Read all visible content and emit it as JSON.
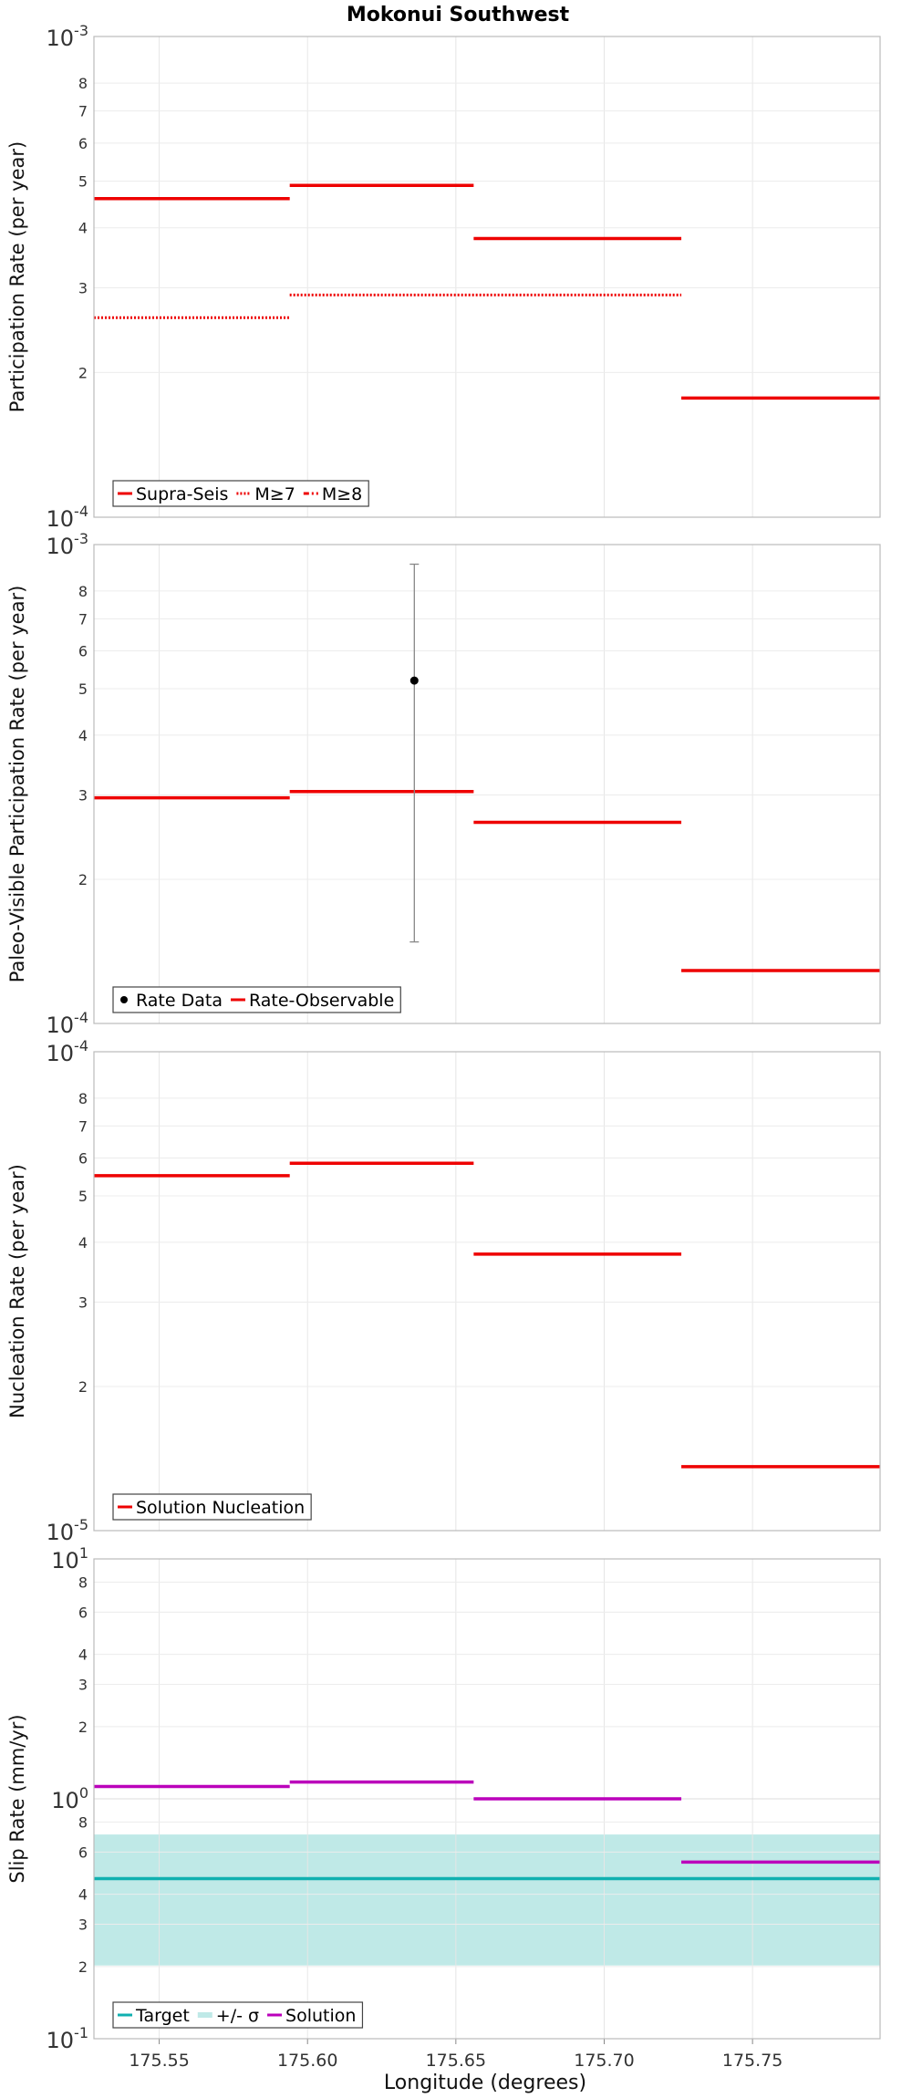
{
  "chart_data": {
    "type": "line",
    "title": "Mokonui Southwest",
    "xlabel": "Longitude (degrees)",
    "xlim": [
      175.528,
      175.793
    ],
    "x_ticks": [
      "175.55",
      "175.60",
      "175.65",
      "175.70",
      "175.75"
    ],
    "x_tick_values": [
      175.55,
      175.6,
      175.65,
      175.7,
      175.75
    ],
    "panels": [
      {
        "ylabel": "Participation Rate (per year)",
        "scale": "log",
        "ylim": [
          0.0001,
          0.001
        ],
        "major_ticks": {
          "base": "10",
          "exp_low": "-4",
          "exp_high": "-3"
        },
        "minor_ticks": [
          "2",
          "3",
          "4",
          "5",
          "6",
          "7",
          "8"
        ],
        "minor_tick_values": [
          0.0002,
          0.0003,
          0.0004,
          0.0005,
          0.0006,
          0.0007,
          0.0008
        ],
        "series": [
          {
            "name": "Supra-Seis",
            "color": "#ee0000",
            "style": "solid",
            "segments": [
              [
                175.528,
                175.594,
                0.00046
              ],
              [
                175.594,
                175.656,
                0.00049
              ],
              [
                175.656,
                175.726,
                0.00038
              ],
              [
                175.726,
                175.793,
                0.000177
              ]
            ]
          },
          {
            "name": "M≥7",
            "color": "#ee0000",
            "style": "dotted",
            "segments": [
              [
                175.528,
                175.594,
                0.00026
              ],
              [
                175.594,
                175.726,
                0.00029
              ]
            ]
          },
          {
            "name": "M≥8",
            "color": "#ee0000",
            "style": "dashdot",
            "segments": []
          }
        ],
        "legend": [
          "Supra-Seis",
          "M≥7",
          "M≥8"
        ]
      },
      {
        "ylabel": "Paleo-Visible Participation Rate (per year)",
        "scale": "log",
        "ylim": [
          0.0001,
          0.001
        ],
        "major_ticks": {
          "base": "10",
          "exp_low": "-4",
          "exp_high": "-3"
        },
        "minor_ticks": [
          "2",
          "3",
          "4",
          "5",
          "6",
          "7",
          "8"
        ],
        "minor_tick_values": [
          0.0002,
          0.0003,
          0.0004,
          0.0005,
          0.0006,
          0.0007,
          0.0008
        ],
        "series": [
          {
            "name": "Rate-Observable",
            "color": "#ee0000",
            "style": "solid",
            "segments": [
              [
                175.528,
                175.594,
                0.000296
              ],
              [
                175.594,
                175.656,
                0.000305
              ],
              [
                175.656,
                175.726,
                0.000263
              ],
              [
                175.726,
                175.793,
                0.000129
              ]
            ]
          }
        ],
        "points": [
          {
            "name": "Rate Data",
            "x": 175.636,
            "y": 0.00052,
            "err_low": 0.000148,
            "err_high": 0.00091
          }
        ],
        "legend": [
          "Rate Data",
          "Rate-Observable"
        ]
      },
      {
        "ylabel": "Nucleation Rate (per year)",
        "scale": "log",
        "ylim": [
          1e-05,
          0.0001
        ],
        "major_ticks": {
          "base": "10",
          "exp_low": "-5",
          "exp_high": "-4"
        },
        "minor_ticks": [
          "2",
          "3",
          "4",
          "5",
          "6",
          "7",
          "8"
        ],
        "minor_tick_values": [
          2e-05,
          3e-05,
          4e-05,
          5e-05,
          6e-05,
          7e-05,
          8e-05
        ],
        "series": [
          {
            "name": "Solution Nucleation",
            "color": "#ee0000",
            "style": "solid",
            "segments": [
              [
                175.528,
                175.594,
                5.51e-05
              ],
              [
                175.594,
                175.656,
                5.85e-05
              ],
              [
                175.656,
                175.726,
                3.78e-05
              ],
              [
                175.726,
                175.793,
                1.36e-05
              ]
            ]
          }
        ],
        "legend": [
          "Solution Nucleation"
        ]
      },
      {
        "ylabel": "Slip Rate (mm/yr)",
        "scale": "log",
        "ylim": [
          0.1,
          10
        ],
        "major_ticks": {
          "base": "10",
          "exp_low": "-1",
          "exp_mid": "0",
          "exp_high": "1"
        },
        "minor_ticks": [
          "2",
          "3",
          "4",
          "6",
          "8",
          "2",
          "3",
          "4",
          "6",
          "8"
        ],
        "minor_tick_values": [
          0.2,
          0.3,
          0.4,
          0.6,
          0.8,
          2,
          3,
          4,
          6,
          8
        ],
        "band": {
          "name": "+/- σ",
          "color": "#bfe9e7",
          "low": 0.202,
          "high": 0.71
        },
        "series": [
          {
            "name": "Target",
            "color": "#10b0b0",
            "style": "solid",
            "segments": [
              [
                175.528,
                175.793,
                0.465
              ]
            ]
          },
          {
            "name": "Solution",
            "color": "#bb00bb",
            "style": "solid",
            "segments": [
              [
                175.528,
                175.594,
                1.125
              ],
              [
                175.594,
                175.656,
                1.175
              ],
              [
                175.656,
                175.726,
                1.0
              ],
              [
                175.726,
                175.793,
                0.545
              ]
            ]
          }
        ],
        "legend": [
          "Target",
          "+/- σ",
          "Solution"
        ]
      }
    ]
  }
}
